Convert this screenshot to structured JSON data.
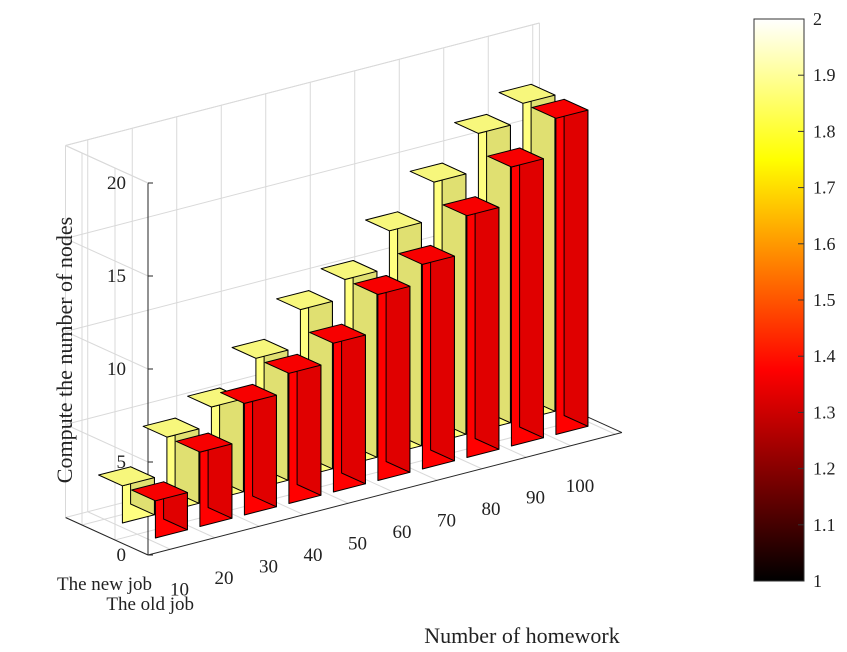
{
  "chart_data": {
    "type": "bar3d",
    "ylabel": "Compute the number of nodes",
    "xlabel": "Number of homework",
    "categories": [
      "10",
      "20",
      "30",
      "40",
      "50",
      "60",
      "70",
      "80",
      "90",
      "100"
    ],
    "series": [
      {
        "name": "The new job",
        "values": [
          2,
          4,
          5,
          7,
          9,
          10,
          12,
          14,
          16,
          17
        ]
      },
      {
        "name": "The old job",
        "values": [
          2,
          4,
          6,
          7,
          8,
          10,
          11,
          13,
          15,
          17
        ]
      }
    ],
    "zticks": [
      0,
      5,
      10,
      15,
      20
    ],
    "zlim": [
      0,
      20
    ],
    "grid": true,
    "colormap": "hot",
    "colorbar": {
      "ticks": [
        "1",
        "1.1",
        "1.2",
        "1.3",
        "1.4",
        "1.5",
        "1.6",
        "1.7",
        "1.8",
        "1.9",
        "2"
      ],
      "range": [
        1,
        2
      ]
    },
    "colors": {
      "new_job": "#FFFF80",
      "old_job": "#FF0000"
    }
  }
}
